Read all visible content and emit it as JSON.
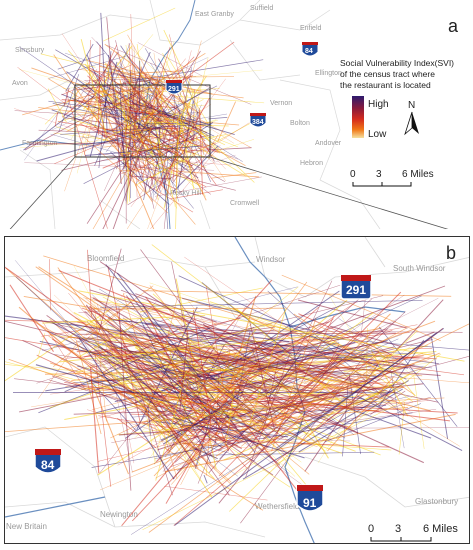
{
  "panel_a": {
    "letter": "a",
    "places": [
      "East Granby",
      "Suffield",
      "Enfield",
      "Ellington",
      "Vernon",
      "Bolton",
      "Andover",
      "Hebron",
      "Simsbury",
      "Avon",
      "Farmington",
      "Rocky Hill",
      "Cromwell"
    ],
    "highways": [
      "291",
      "384",
      "84"
    ]
  },
  "panel_b": {
    "letter": "b",
    "places": [
      "Bloomfield",
      "Windsor",
      "South Windsor",
      "New Britain",
      "Newington",
      "Wethersfield",
      "Glastonbury"
    ],
    "highways": [
      "291",
      "84",
      "91"
    ]
  },
  "legend": {
    "title_line1": "Social Vulnerability Index(SVI)",
    "title_line2": "of the census tract where",
    "title_line3": "the restaurant is located",
    "high_label": "High",
    "low_label": "Low",
    "north_label": "N",
    "gradient_colors": [
      "#2d1a6e",
      "#8b1a3a",
      "#d42b1e",
      "#f07818",
      "#f5d010"
    ]
  },
  "scale_a": {
    "labels": [
      "0",
      "3",
      "6 Miles"
    ]
  },
  "scale_b": {
    "labels": [
      "0",
      "3",
      "6 Miles"
    ]
  }
}
